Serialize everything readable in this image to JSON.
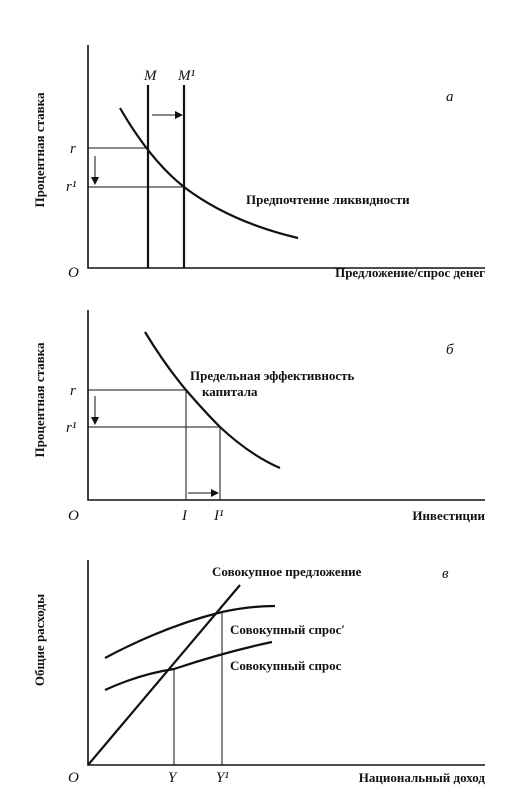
{
  "panel_a": {
    "letter": "а",
    "y_axis": "Процентная ставка",
    "x_axis": "Предложение/спрос денег",
    "origin": "O",
    "m": "M",
    "m1": "M¹",
    "r": "r",
    "r1": "r¹",
    "curve_label": "Предпочтение ликвидности"
  },
  "panel_b": {
    "letter": "б",
    "y_axis": "Процентная ставка",
    "x_axis": "Инвестиции",
    "origin": "O",
    "i": "I",
    "i1": "I¹",
    "r": "r",
    "r1": "r¹",
    "curve_label": [
      "Предельная эффективность",
      "капитала"
    ]
  },
  "panel_c": {
    "letter": "в",
    "y_axis": "Общие расходы",
    "x_axis": "Национальный доход",
    "origin": "O",
    "y": "Y",
    "y1": "Y¹",
    "supply_label": "Совокупное предложение",
    "demand1_label": "Совокупный спрос′",
    "demand_label": "Совокупный спрос"
  }
}
